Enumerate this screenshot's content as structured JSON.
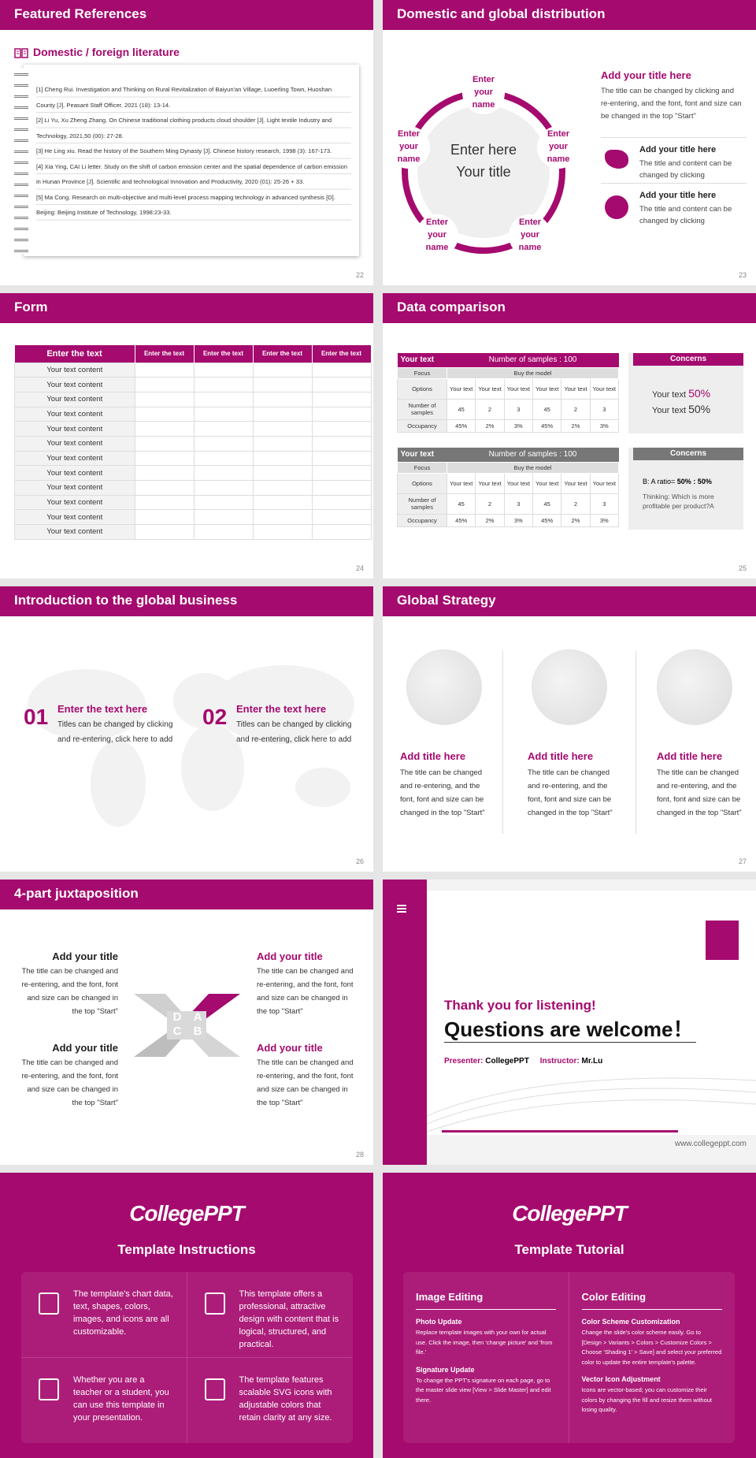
{
  "references": {
    "title": "Featured References",
    "heading": "Domestic / foreign literature",
    "items": [
      "[1] Cheng Rui. Investigation and Thinking on Rural Revitalization of Baiyun'an Village, Luoerling Town, Huoshan County [J]. Peasant Staff Officer, 2021 (18): 13-14.",
      "[2] Li Yu, Xu Zheng Zhang. On Chinese traditional clothing products cloud shoulder [J]. Light textile Industry and Technology, 2021,50 (00): 27-28.",
      "[3] He Ling xiu. Read the history of the Southern Ming Dynasty [J]. Chinese history research, 1998 (3): 167-173.",
      "[4] Xia Ying, CAI Li letter. Study on the shift of carbon emission center and the spatial dependence of carbon emission in Hunan Province [J]. Scientific and technological Innovation and Productivity, 2020 (01): 25-26 + 33.",
      "[5] Ma Cong. Research on multi-objective and multi-level process mapping technology in advanced synthesis [D]. Beijing: Beijing Institute of Technology, 1998:23-33."
    ],
    "page": "22"
  },
  "distribution": {
    "title": "Domestic and global distribution",
    "center_line1": "Enter here",
    "center_line2": "Your title",
    "names": [
      "Enter your name",
      "Enter your name",
      "Enter your name",
      "Enter your name",
      "Enter your name"
    ],
    "side_title": "Add your title here",
    "side_text": "The title can be changed by clicking and re-entering, and the font, font and size can be changed in the top \"Start\"",
    "items": [
      {
        "title": "Add your title here",
        "text": "The title and content can be changed by clicking"
      },
      {
        "title": "Add your title here",
        "text": "The title and content can be changed by clicking"
      }
    ],
    "page": "23"
  },
  "form": {
    "title": "Form",
    "header": [
      "Enter the text",
      "Enter the text",
      "Enter the text",
      "Enter the text",
      "Enter the text"
    ],
    "rows": [
      "Your text content",
      "Your text content",
      "Your text content",
      "Your text content",
      "Your text content",
      "Your text content",
      "Your text content",
      "Your text content",
      "Your text content",
      "Your text content",
      "Your text content",
      "Your text content"
    ],
    "page": "24"
  },
  "comparison": {
    "title": "Data comparison",
    "tables": [
      {
        "label": "Your text",
        "samples_title": "Number of samples : 100",
        "focus": "Focus",
        "model": "Buy the model",
        "row_labels": [
          "Options",
          "Number of samples",
          "Occupancy"
        ],
        "options": [
          "Your text",
          "Your text",
          "Your text",
          "Your text",
          "Your text",
          "Your text"
        ],
        "samples": [
          45,
          2,
          3,
          45,
          2,
          3
        ],
        "occupancy": [
          "45%",
          "2%",
          "3%",
          "45%",
          "2%",
          "3%"
        ]
      },
      {
        "label": "Your text",
        "samples_title": "Number of samples : 100",
        "focus": "Focus",
        "model": "Buy the model",
        "row_labels": [
          "Options",
          "Number of samples",
          "Occupancy"
        ],
        "options": [
          "Your text",
          "Your text",
          "Your text",
          "Your text",
          "Your text",
          "Your text"
        ],
        "samples": [
          45,
          2,
          3,
          45,
          2,
          3
        ],
        "occupancy": [
          "45%",
          "2%",
          "3%",
          "45%",
          "2%",
          "3%"
        ]
      }
    ],
    "concerns": [
      {
        "title": "Concerns",
        "lines": [
          {
            "text": "Your text",
            "value": "50%"
          },
          {
            "text": "Your text",
            "value": "50%"
          }
        ]
      },
      {
        "title": "Concerns",
        "lines": [
          {
            "text": "B: A ratio=",
            "value": "50% : 50%"
          }
        ],
        "note": "Thinking: Which is more profitable per product?A"
      }
    ],
    "page": "25"
  },
  "intro": {
    "title": "Introduction to the global business",
    "items": [
      {
        "number": "01",
        "title": "Enter the text here",
        "text": "Titles can be changed by clicking and re-entering, click here to add"
      },
      {
        "number": "02",
        "title": "Enter the text here",
        "text": "Titles can be changed by clicking and re-entering, click here to add"
      }
    ],
    "page": "26"
  },
  "strategy": {
    "title": "Global Strategy",
    "items": [
      {
        "title": "Add title here",
        "text": "The title can be changed and re-entering, and the font, font and size can be changed in the top \"Start\""
      },
      {
        "title": "Add title here",
        "text": "The title can be changed and re-entering, and the font, font and size can be changed in the top \"Start\""
      },
      {
        "title": "Add title here",
        "text": "The title can be changed and re-entering, and the font, font and size can be changed in the top \"Start\""
      }
    ],
    "page": "27"
  },
  "juxtaposition": {
    "title": "4-part juxtaposition",
    "letters": [
      "D",
      "A",
      "C",
      "B"
    ],
    "items": [
      {
        "title": "Add your title",
        "text": "The title can be changed and re-entering, and the font, font and size can be changed in the top \"Start\""
      },
      {
        "title": "Add your title",
        "text": "The title can be changed and re-entering, and the font, font and size can be changed in the top \"Start\""
      },
      {
        "title": "Add your title",
        "text": "The title can be changed and re-entering, and the font, font and size can be changed in the top \"Start\""
      },
      {
        "title": "Add your title",
        "text": "The title can be changed and re-entering, and the font, font and size can be changed in the top \"Start\""
      }
    ],
    "page": "28"
  },
  "thanks": {
    "subtitle": "Thank you for listening!",
    "title": "Questions are welcome！",
    "presenter_label": "Presenter:",
    "presenter": "CollegePPT",
    "instructor_label": "Instructor:",
    "instructor": "Mr.Lu",
    "website": "www.collegeppt.com"
  },
  "instructions": {
    "logo": "CollegePPT",
    "title": "Template Instructions",
    "items": [
      "The template's chart data, text, shapes, colors, images, and icons are all customizable.",
      "This template offers a professional, attractive design with content that is logical, structured, and practical.",
      "Whether you are a teacher or a student, you can use this template in your presentation.",
      "The template features scalable SVG icons with adjustable colors that retain clarity at any size."
    ]
  },
  "tutorial": {
    "logo": "CollegePPT",
    "title": "Template Tutorial",
    "sections": [
      {
        "title": "Image Editing",
        "items": [
          {
            "title": "Photo Update",
            "text": "Replace template images with your own for actual use. Click the image, then 'change picture' and 'from file.'"
          },
          {
            "title": "Signature Update",
            "text": "To change the PPT's signature on each page, go to the master slide view [View > Slide Master] and edit there."
          }
        ]
      },
      {
        "title": "Color Editing",
        "items": [
          {
            "title": "Color Scheme Customization",
            "text": "Change the slide's color scheme easily. Go to [Design > Variants > Colors > Customize Colors > Choose 'Shading 1' > Save] and select your preferred color to update the entire template's palette."
          },
          {
            "title": "Vector Icon Adjustment",
            "text": "Icons are vector-based; you can customize their colors by changing the fill and resize them without losing quality."
          }
        ]
      }
    ]
  }
}
